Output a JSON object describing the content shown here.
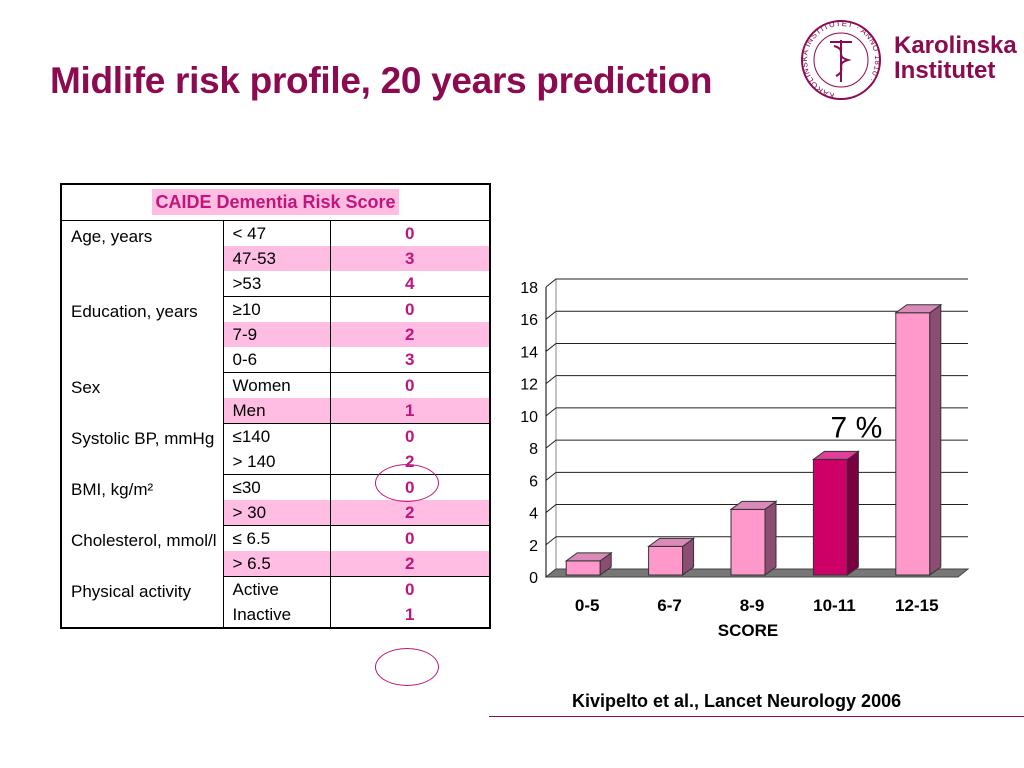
{
  "slide": {
    "title": "Midlife risk profile, 20 years prediction"
  },
  "logo": {
    "seal_text": "KAROLINSKA INSTITUTET · ANNO 1810",
    "line1": "Karolinska",
    "line2": "Institutet"
  },
  "table": {
    "header": "CAIDE Dementia Risk Score",
    "groups": [
      {
        "name": "Age, years",
        "rows": [
          {
            "value": "< 47",
            "points": "0",
            "pink": false
          },
          {
            "value": "47-53",
            "points": "3",
            "pink": true
          },
          {
            "value": ">53",
            "points": "4",
            "pink": false
          }
        ]
      },
      {
        "name": "Education, years",
        "rows": [
          {
            "value": "≥10",
            "points": "0",
            "pink": false
          },
          {
            "value": "7-9",
            "points": "2",
            "pink": true
          },
          {
            "value": "0-6",
            "points": "3",
            "pink": false
          }
        ]
      },
      {
        "name": "Sex",
        "rows": [
          {
            "value": "Women",
            "points": "0",
            "pink": false
          },
          {
            "value": "Men",
            "points": "1",
            "pink": true
          }
        ]
      },
      {
        "name": "Systolic BP, mmHg",
        "rows": [
          {
            "value": "≤140",
            "points": "0",
            "pink": false
          },
          {
            "value": "> 140",
            "points": "2",
            "pink": false
          }
        ]
      },
      {
        "name": "BMI, kg/m²",
        "rows": [
          {
            "value": "≤30",
            "points": "0",
            "pink": false
          },
          {
            "value": "> 30",
            "points": "2",
            "pink": true
          }
        ]
      },
      {
        "name": "Cholesterol, mmol/l",
        "rows": [
          {
            "value": "≤ 6.5",
            "points": "0",
            "pink": false
          },
          {
            "value": "> 6.5",
            "points": "2",
            "pink": true
          }
        ]
      },
      {
        "name": "Physical activity",
        "rows": [
          {
            "value": "Active",
            "points": "0",
            "pink": false
          },
          {
            "value": "Inactive",
            "points": "1",
            "pink": false
          }
        ]
      }
    ]
  },
  "chart_data": {
    "type": "bar",
    "categories": [
      "0-5",
      "6-7",
      "8-9",
      "10-11",
      "12-15"
    ],
    "values": [
      1.0,
      1.9,
      4.2,
      7.3,
      16.4
    ],
    "highlight_index": 3,
    "annotation": "7 %",
    "xlabel": "SCORE",
    "ylabel": "",
    "ylim": [
      0,
      18
    ],
    "yticks": [
      0,
      2,
      4,
      6,
      8,
      10,
      12,
      14,
      16,
      18
    ],
    "grid": true,
    "colors": {
      "bar": "#ff99cc",
      "bar_highlight": "#cc0066"
    }
  },
  "citation": "Kivipelto et al., Lancet Neurology 2006",
  "colors": {
    "title": "#8b0a50",
    "points": "#c0157a",
    "row_highlight": "#ffbde3"
  }
}
